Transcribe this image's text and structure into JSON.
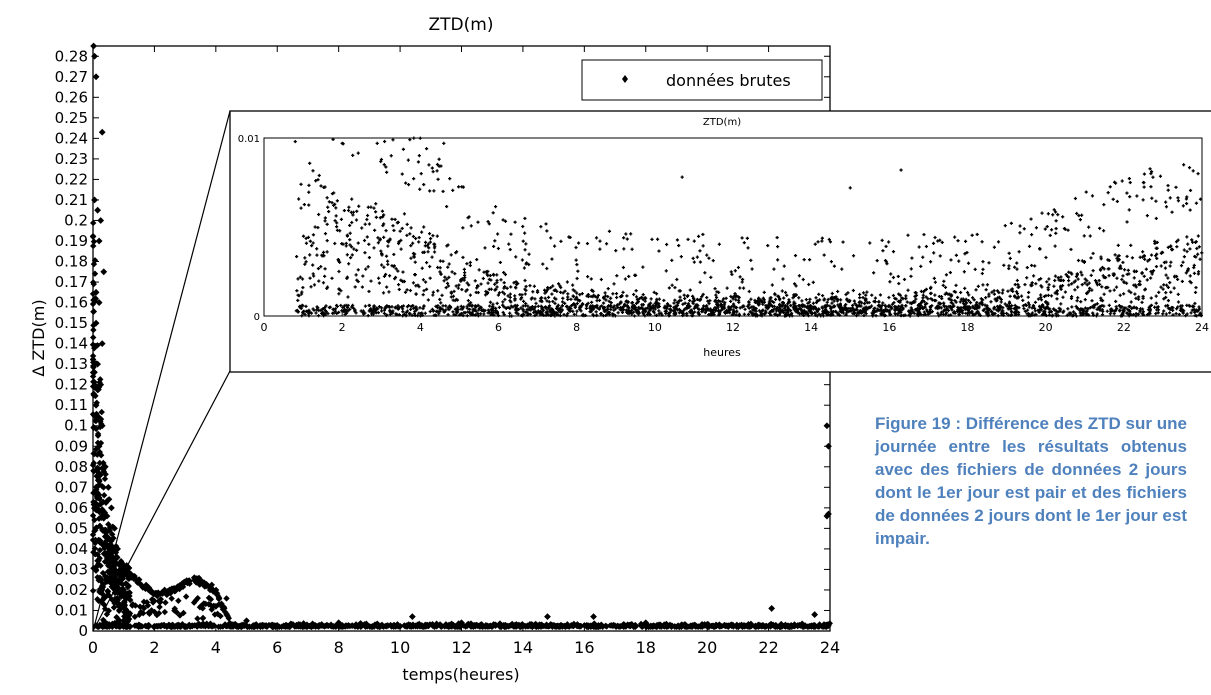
{
  "chart_data": [
    {
      "type": "scatter",
      "title": "ZTD(m)",
      "xlabel": "temps(heures)",
      "ylabel": "Δ ZTD(m)",
      "xlim": [
        0,
        24
      ],
      "ylim": [
        0,
        0.285
      ],
      "x_ticks": [
        "0",
        "2",
        "4",
        "6",
        "8",
        "10",
        "12",
        "14",
        "16",
        "18",
        "20",
        "22",
        "24"
      ],
      "y_ticks": [
        "0",
        "0.01",
        "0.02",
        "0.03",
        "0.04",
        "0.05",
        "0.06",
        "0.07",
        "0.08",
        "0.09",
        "0.1",
        "0.11",
        "0.12",
        "0.13",
        "0.14",
        "0.15",
        "0.16",
        "0.17",
        "0.18",
        "0.19",
        "0.2",
        "0.21",
        "0.22",
        "0.23",
        "0.24",
        "0.25",
        "0.26",
        "0.27",
        "0.28"
      ],
      "grid": false,
      "legend": {
        "position": "top-right",
        "entries": [
          "données brutes"
        ]
      },
      "series": [
        {
          "name": "données brutes",
          "marker": "diamond",
          "color": "#000000",
          "approx_points": [
            [
              0.02,
              0.285
            ],
            [
              0.05,
              0.28
            ],
            [
              0.1,
              0.27
            ],
            [
              0.3,
              0.243
            ],
            [
              0.05,
              0.21
            ],
            [
              0.15,
              0.205
            ],
            [
              0.25,
              0.2
            ],
            [
              0.2,
              0.19
            ],
            [
              0.35,
              0.175
            ],
            [
              0.1,
              0.165
            ],
            [
              0.2,
              0.16
            ],
            [
              0.1,
              0.15
            ],
            [
              0.3,
              0.14
            ],
            [
              0.15,
              0.13
            ],
            [
              0.25,
              0.12
            ],
            [
              0.1,
              0.11
            ],
            [
              0.3,
              0.1
            ],
            [
              0.2,
              0.09
            ],
            [
              0.4,
              0.08
            ],
            [
              0.5,
              0.07
            ],
            [
              0.6,
              0.06
            ],
            [
              0.7,
              0.05
            ],
            [
              0.8,
              0.04
            ],
            [
              0.9,
              0.03
            ],
            [
              1.0,
              0.02
            ],
            [
              1.5,
              0.025
            ],
            [
              2.5,
              0.02
            ],
            [
              3.3,
              0.026
            ],
            [
              4.0,
              0.012
            ],
            [
              5,
              0.005
            ],
            [
              8,
              0.004
            ],
            [
              10.4,
              0.007
            ],
            [
              12,
              0.004
            ],
            [
              14.8,
              0.007
            ],
            [
              16.3,
              0.007
            ],
            [
              18,
              0.004
            ],
            [
              22.1,
              0.011
            ],
            [
              23.5,
              0.008
            ],
            [
              23.9,
              0.1
            ],
            [
              23.95,
              0.09
            ],
            [
              23.9,
              0.056
            ],
            [
              23.95,
              0.057
            ]
          ]
        }
      ]
    },
    {
      "type": "scatter",
      "title": "ZTD(m)",
      "xlabel": "heures",
      "ylabel": "",
      "xlim": [
        0,
        24
      ],
      "ylim": [
        0,
        0.01
      ],
      "x_ticks": [
        "0",
        "2",
        "4",
        "6",
        "8",
        "10",
        "12",
        "14",
        "16",
        "18",
        "20",
        "22",
        "24"
      ],
      "y_ticks": [
        "0",
        "0.01"
      ],
      "grid": false,
      "series": [
        {
          "marker": "plus",
          "color": "#000000",
          "approx_trend": [
            [
              1,
              0.006
            ],
            [
              2,
              0.0045
            ],
            [
              3,
              0.004
            ],
            [
              4,
              0.0035
            ],
            [
              5,
              0.0025
            ],
            [
              6,
              0.0015
            ],
            [
              8,
              0.001
            ],
            [
              10,
              0.0008
            ],
            [
              12,
              0.0008
            ],
            [
              14,
              0.0007
            ],
            [
              16,
              0.0008
            ],
            [
              18,
              0.0008
            ],
            [
              20,
              0.0015
            ],
            [
              22,
              0.0025
            ],
            [
              24,
              0.003
            ]
          ],
          "approx_peaks": [
            [
              0.8,
              0.0098
            ],
            [
              2,
              0.0097
            ],
            [
              3.3,
              0.0099
            ],
            [
              4.6,
              0.0097
            ],
            [
              10.7,
              0.0078
            ],
            [
              15,
              0.0072
            ],
            [
              16.3,
              0.0082
            ],
            [
              22.5,
              0.0075
            ],
            [
              23.9,
              0.008
            ]
          ]
        }
      ]
    }
  ],
  "caption": "Figure 19 : Différence des ZTD sur une journée entre les résultats obtenus avec des fichiers de données 2 jours dont le 1er jour est pair et des fichiers de données 2 jours dont le 1er jour est impair."
}
